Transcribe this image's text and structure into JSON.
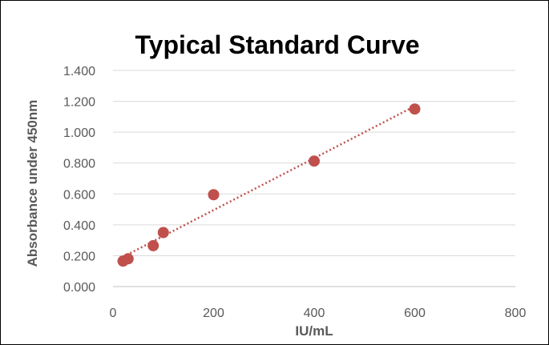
{
  "chart_data": {
    "type": "scatter",
    "title": "Typical Standard Curve",
    "xlabel": "IU/mL",
    "ylabel": "Absorbance under 450nm",
    "xlim": [
      0,
      800
    ],
    "ylim": [
      0,
      1.4
    ],
    "x_ticks": [
      "0",
      "200",
      "400",
      "600",
      "800"
    ],
    "y_ticks": [
      "0.000",
      "0.200",
      "0.400",
      "0.600",
      "0.800",
      "1.000",
      "1.200",
      "1.400"
    ],
    "grid": true,
    "series": [
      {
        "x": [
          20,
          30,
          80,
          100,
          200,
          400,
          600
        ],
        "y": [
          0.165,
          0.18,
          0.265,
          0.35,
          0.595,
          0.813,
          1.15
        ],
        "color": "#c0504d",
        "marker": "circle",
        "trendline": "linear",
        "trendline_style": "dotted"
      }
    ]
  }
}
